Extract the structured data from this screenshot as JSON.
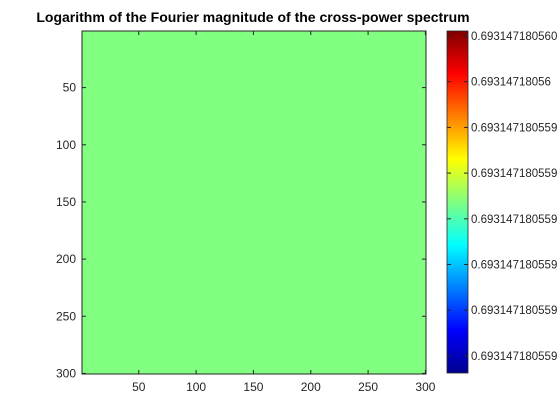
{
  "chart_data": {
    "type": "heatmap",
    "title": "Logarithm of the Fourier magnitude of the cross-power spectrum",
    "xlabel": "",
    "ylabel": "",
    "xlim": [
      0.5,
      300.5
    ],
    "ylim": [
      0.5,
      300.5
    ],
    "y_reversed": true,
    "x_ticks": [
      "50",
      "100",
      "150",
      "200",
      "250",
      "300"
    ],
    "y_ticks": [
      "50",
      "100",
      "150",
      "200",
      "250",
      "300"
    ],
    "matrix_size": [
      300,
      300
    ],
    "uniform_value": 0.6931471805599,
    "fill_color": "#80FF80",
    "colormap": "jet",
    "colorbar": {
      "ticks": [
        "0.693147180560",
        "0.69314718056",
        "0.693147180559",
        "0.693147180559",
        "0.693147180559",
        "0.693147180559",
        "0.693147180559",
        "0.693147180559"
      ]
    },
    "grid": false
  }
}
